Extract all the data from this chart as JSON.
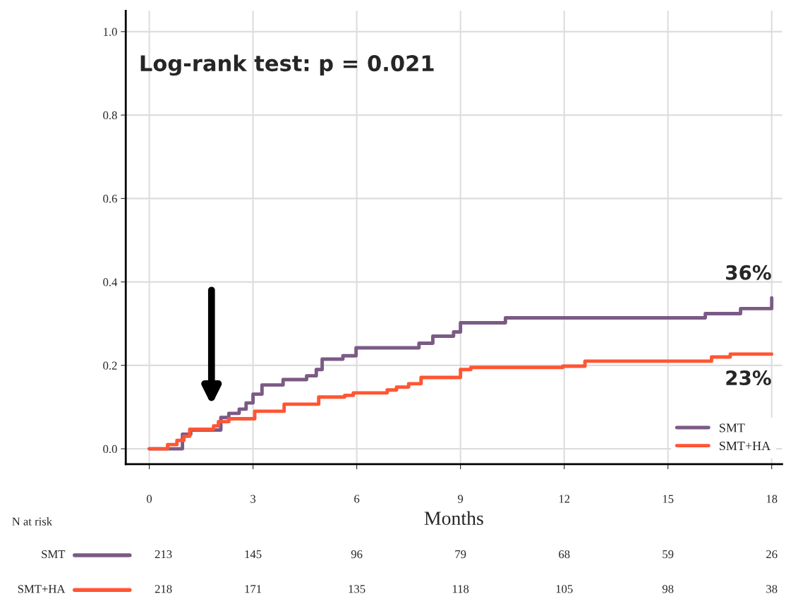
{
  "chart_data": {
    "type": "step",
    "xlabel": "Months",
    "xlim": [
      -0.68,
      18.3
    ],
    "xticks": [
      0,
      3,
      6,
      9,
      12,
      15,
      18
    ],
    "ylim": [
      -0.037,
      1.05
    ],
    "yticks": [
      {
        "value": 0,
        "label": "0.0"
      },
      {
        "value": 0.2,
        "label": "0.2"
      },
      {
        "value": 0.4,
        "label": "0.4"
      },
      {
        "value": 0.6,
        "label": "0.6"
      },
      {
        "value": 0.8,
        "label": "0.8"
      },
      {
        "value": 1.0,
        "label": "1.0"
      }
    ],
    "grid": true,
    "legend": "bottom right",
    "series": [
      {
        "name": "SMT",
        "color": "#7b5a85",
        "x": [
          0,
          0.96,
          1.2,
          2.07,
          2.3,
          2.6,
          2.8,
          3.0,
          3.26,
          3.87,
          4.55,
          4.83,
          5.0,
          5.6,
          5.98,
          7.8,
          8.2,
          8.8,
          9.0,
          10.3,
          16.08,
          17.1,
          18
        ],
        "values": [
          0,
          0.035,
          0.045,
          0.075,
          0.085,
          0.095,
          0.11,
          0.131,
          0.153,
          0.166,
          0.175,
          0.19,
          0.215,
          0.223,
          0.242,
          0.253,
          0.27,
          0.28,
          0.302,
          0.314,
          0.324,
          0.336,
          0.362
        ]
      },
      {
        "name": "SMT+HA",
        "color": "#ff5533",
        "x": [
          0,
          0.53,
          0.8,
          1.0,
          1.17,
          1.86,
          2.0,
          2.3,
          3.05,
          3.9,
          4.9,
          5.65,
          5.9,
          6.88,
          7.15,
          7.5,
          7.86,
          9.0,
          9.3,
          11.96,
          12.6,
          16.26,
          16.8,
          18
        ],
        "values": [
          0,
          0.01,
          0.02,
          0.03,
          0.047,
          0.055,
          0.065,
          0.072,
          0.09,
          0.107,
          0.124,
          0.128,
          0.134,
          0.141,
          0.148,
          0.156,
          0.171,
          0.19,
          0.195,
          0.198,
          0.21,
          0.22,
          0.227,
          0.227
        ]
      }
    ],
    "annotations": [
      "Log-rank test: p = 0.021",
      {
        "text": "36%",
        "x": 18,
        "y": 0.362
      },
      {
        "text": "23%",
        "x": 18,
        "y": 0.227
      },
      "N at risk",
      "213",
      "145",
      "96",
      "79",
      "68",
      "59",
      "26",
      "218",
      "171",
      "135",
      "118",
      "105",
      "98",
      "38"
    ]
  }
}
